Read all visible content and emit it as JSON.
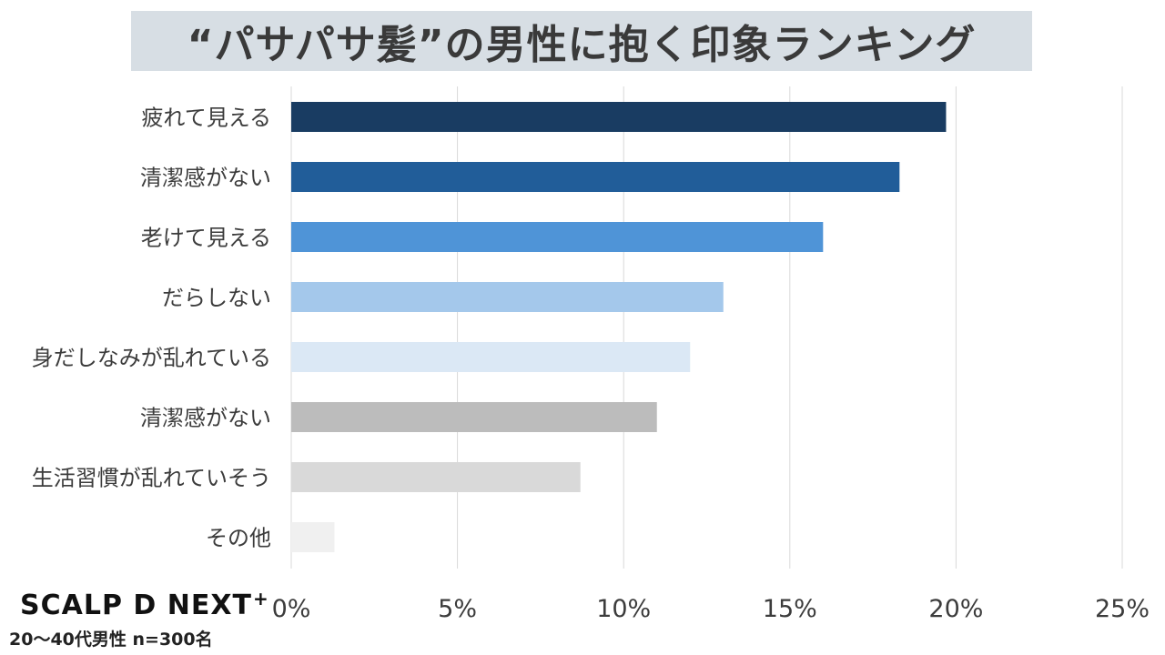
{
  "chart_data": {
    "type": "bar",
    "orientation": "horizontal",
    "title": "“パサパサ髪”の男性に抱く印象ランキング",
    "categories": [
      "疲れて見える",
      "清潔感がない",
      "老けて見える",
      "だらしない",
      "身だしなみが乱れている",
      "清潔感がない",
      "生活習慣が乱れていそう",
      "その他"
    ],
    "values": [
      19.7,
      18.3,
      16.0,
      13.0,
      12.0,
      11.0,
      8.7,
      1.3
    ],
    "bar_colors": [
      "#193c62",
      "#215d99",
      "#4f94d7",
      "#a4c8eb",
      "#dbe8f5",
      "#bcbcbc",
      "#d9d9d9",
      "#f0f0f0"
    ],
    "xlim": [
      0,
      25
    ],
    "xticks": [
      "0%",
      "5%",
      "10%",
      "15%",
      "20%",
      "25%"
    ],
    "xtick_values": [
      0,
      5,
      10,
      15,
      20,
      25
    ],
    "grid": true
  },
  "footer": {
    "logo_main": "SCALP D NEXT",
    "logo_sup": "+",
    "sample_note": "20〜40代男性 n=300名"
  }
}
